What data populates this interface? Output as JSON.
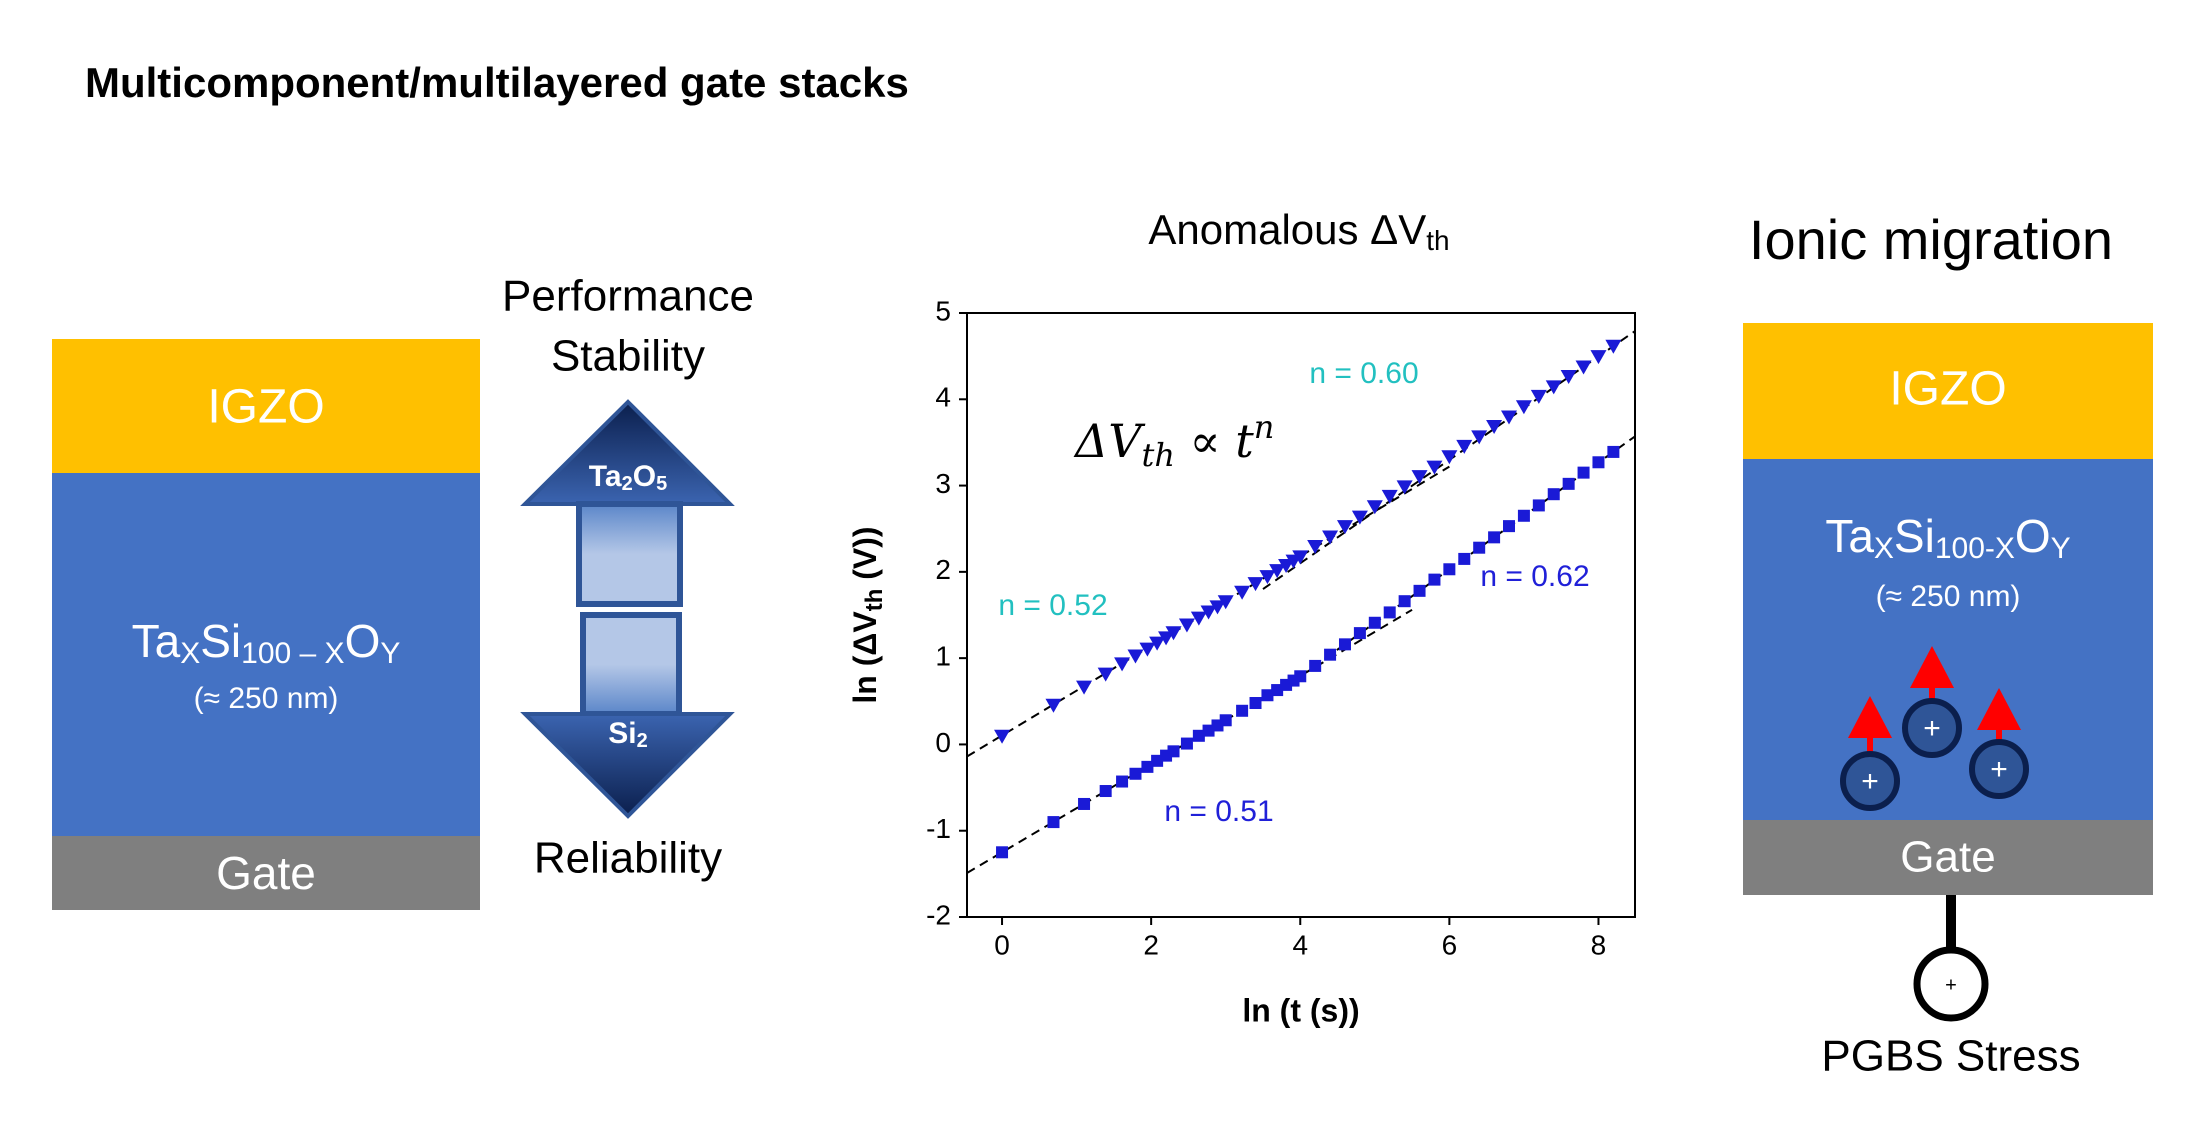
{
  "header": {
    "title": "Multicomponent/multilayered gate stacks"
  },
  "left_stack": {
    "top": "IGZO",
    "middle": [
      "Ta",
      "X",
      "Si",
      "100 – X",
      "O",
      "Y"
    ],
    "thickness": "(≈ 250 nm)",
    "bottom": "Gate"
  },
  "trend": {
    "top_label": [
      "Performance",
      "Stability"
    ],
    "up_arrow": [
      "Ta",
      "2",
      "O",
      "5"
    ],
    "down_arrow": [
      "Si",
      "2"
    ],
    "bottom_label": "Reliability"
  },
  "chart_data": {
    "type": "scatter",
    "title": [
      "Anomalous ΔV",
      "th"
    ],
    "x_label": "ln (t (s))",
    "y_label": [
      "ln (ΔV",
      "th",
      " (V))"
    ],
    "formula": [
      "ΔV",
      "th",
      " ∝ t",
      "n"
    ],
    "xlim": [
      -0.47,
      8.49
    ],
    "xticks": [
      0,
      2,
      4,
      6,
      8
    ],
    "ylim": [
      -2,
      5
    ],
    "yticks": [
      -2,
      -1,
      0,
      1,
      2,
      3,
      4,
      5
    ],
    "x": [
      0,
      0.69,
      1.1,
      1.39,
      1.61,
      1.79,
      1.95,
      2.08,
      2.2,
      2.3,
      2.48,
      2.64,
      2.77,
      2.89,
      3.0,
      3.22,
      3.4,
      3.56,
      3.69,
      3.81,
      3.91,
      4.0,
      4.2,
      4.4,
      4.6,
      4.8,
      5.0,
      5.2,
      5.4,
      5.6,
      5.8,
      6.0,
      6.2,
      6.4,
      6.6,
      6.8,
      7.0,
      7.2,
      7.4,
      7.6,
      7.8,
      8.0,
      8.2
    ],
    "series": [
      {
        "marker": "triangle",
        "color": "#1a1ad6",
        "values": [
          0.1,
          0.46,
          0.67,
          0.82,
          0.94,
          1.03,
          1.11,
          1.18,
          1.24,
          1.3,
          1.39,
          1.47,
          1.54,
          1.6,
          1.66,
          1.77,
          1.87,
          1.95,
          2.02,
          2.08,
          2.13,
          2.18,
          2.3,
          2.41,
          2.53,
          2.64,
          2.76,
          2.88,
          2.99,
          3.11,
          3.22,
          3.34,
          3.46,
          3.57,
          3.69,
          3.8,
          3.92,
          4.04,
          4.15,
          4.27,
          4.38,
          4.5,
          4.62
        ]
      },
      {
        "marker": "square",
        "color": "#1a1ad6",
        "values": [
          -1.25,
          -0.9,
          -0.69,
          -0.54,
          -0.43,
          -0.34,
          -0.26,
          -0.19,
          -0.13,
          -0.08,
          0.01,
          0.1,
          0.16,
          0.22,
          0.28,
          0.39,
          0.48,
          0.57,
          0.63,
          0.69,
          0.74,
          0.79,
          0.91,
          1.04,
          1.16,
          1.29,
          1.41,
          1.53,
          1.66,
          1.78,
          1.91,
          2.03,
          2.15,
          2.28,
          2.4,
          2.53,
          2.65,
          2.77,
          2.9,
          3.02,
          3.15,
          3.27,
          3.39
        ]
      }
    ],
    "fit_lines": [
      {
        "x": [
          -0.47,
          6.0
        ],
        "y": [
          -0.14,
          3.22
        ]
      },
      {
        "x": [
          3.5,
          8.49
        ],
        "y": [
          1.8,
          4.79
        ]
      },
      {
        "x": [
          -0.47,
          5.5
        ],
        "y": [
          -1.49,
          1.56
        ]
      },
      {
        "x": [
          4.0,
          8.49
        ],
        "y": [
          0.79,
          3.57
        ]
      }
    ],
    "annotations": [
      {
        "text": "n = 0.60",
        "color": "#22c0c0"
      },
      {
        "text": "n = 0.52",
        "color": "#22c0c0"
      },
      {
        "text": "n = 0.62",
        "color": "#2020d8"
      },
      {
        "text": "n = 0.51",
        "color": "#2020d8"
      }
    ]
  },
  "right_stack": {
    "title": "Ionic migration",
    "top": "IGZO",
    "middle": [
      "Ta",
      "X",
      "Si",
      "100-X",
      "O",
      "Y"
    ],
    "thickness": "(≈ 250 nm)",
    "bottom": "Gate",
    "ion_sign": "+",
    "source_sign": "+",
    "stress": "PGBS Stress"
  }
}
